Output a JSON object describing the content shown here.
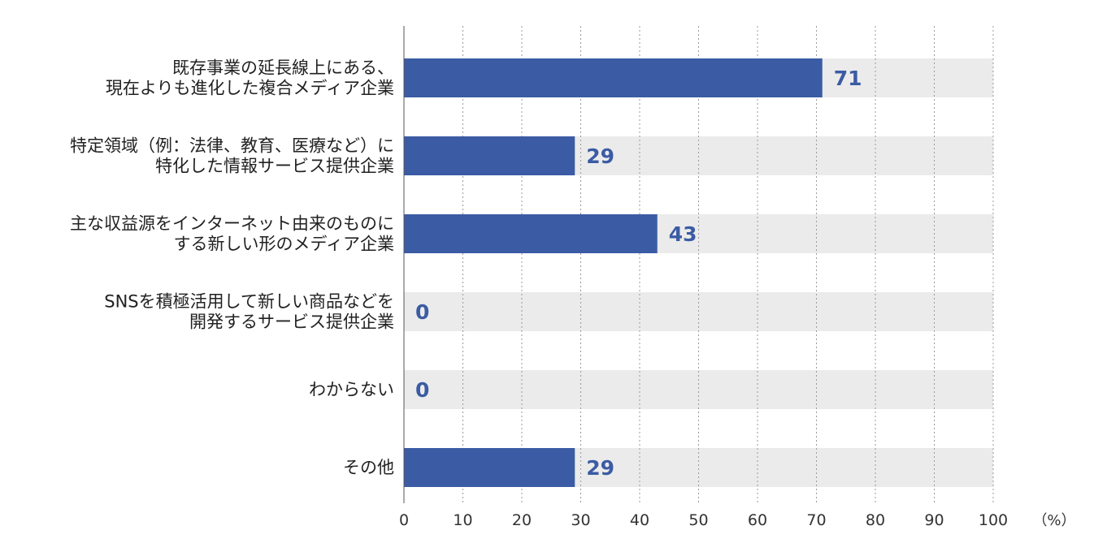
{
  "chart_data": {
    "type": "bar",
    "orientation": "horizontal",
    "categories": [
      [
        "既存事業の延長線上にある、",
        "現在よりも進化した複合メディア企業"
      ],
      [
        "特定領域（例：法律、教育、医療など）に",
        "特化した情報サービス提供企業"
      ],
      [
        "主な収益源をインターネット由来のものに",
        "する新しい形のメディア企業"
      ],
      [
        "SNSを積極活用して新しい商品などを",
        "開発するサービス提供企業"
      ],
      [
        "わからない"
      ],
      [
        "その他"
      ]
    ],
    "values": [
      71,
      29,
      43,
      0,
      0,
      29
    ],
    "value_labels": [
      "71",
      "29",
      "43",
      "0",
      "0",
      "29"
    ],
    "xlim": [
      0,
      100
    ],
    "xticks": [
      0,
      10,
      20,
      30,
      40,
      50,
      60,
      70,
      80,
      90,
      100
    ],
    "xtick_labels": [
      "0",
      "10",
      "20",
      "30",
      "40",
      "50",
      "60",
      "70",
      "80",
      "90",
      "100"
    ],
    "unit_label": "（%）",
    "title": "",
    "xlabel": "",
    "ylabel": "",
    "grid": "vertical dotted",
    "legend": "none",
    "colors": {
      "bar": "#3b5ca4",
      "track": "#ebebeb",
      "value_text": "#3b5ca4",
      "axis": "#555555",
      "grid": "#9a9a9a"
    }
  }
}
